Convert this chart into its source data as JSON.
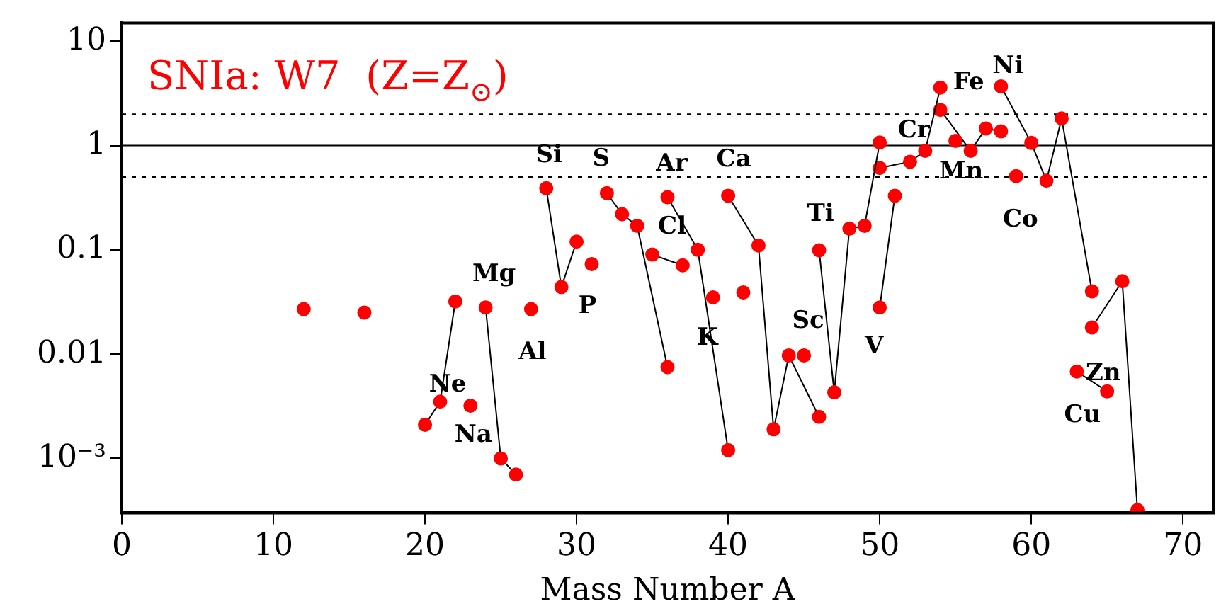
{
  "chart_data": {
    "type": "line",
    "title": "SNIa: W7  (Z=Z$_{⊙}$)",
    "xlabel": "Mass Number A",
    "log": "y",
    "grid": false,
    "marker": "circle",
    "xlim": [
      0,
      72
    ],
    "xticks": [
      0,
      10,
      20,
      30,
      40,
      50,
      60,
      70
    ],
    "ylim": [
      0.0003,
      15
    ],
    "yticks": [
      {
        "value": 0.001,
        "label": "10⁻³"
      },
      0.01,
      0.1,
      1,
      10
    ],
    "ref_lines": [
      {
        "axis": "y",
        "value": 1,
        "line_style": "solid"
      },
      {
        "axis": "y",
        "value": 2,
        "line_style": "dotted"
      },
      {
        "axis": "y",
        "value": 0.5,
        "line_style": "dotted"
      }
    ],
    "series": [
      {
        "color": "#ff0000",
        "x": [
          12
        ],
        "values": [
          0.027
        ]
      },
      {
        "color": "#ff0000",
        "x": [
          16
        ],
        "values": [
          0.025
        ]
      },
      {
        "name": "Ne",
        "color": "#ff0000",
        "x": [
          20,
          21,
          22
        ],
        "values": [
          0.0021,
          0.0035,
          0.032
        ]
      },
      {
        "name": "Na",
        "color": "#ff0000",
        "x": [
          23
        ],
        "values": [
          0.0032
        ]
      },
      {
        "name": "Mg",
        "color": "#ff0000",
        "x": [
          24,
          25,
          26
        ],
        "values": [
          0.028,
          0.001,
          0.0007
        ]
      },
      {
        "name": "Al",
        "color": "#ff0000",
        "x": [
          27
        ],
        "values": [
          0.027
        ]
      },
      {
        "name": "Si",
        "color": "#ff0000",
        "x": [
          28,
          29,
          30
        ],
        "values": [
          0.39,
          0.044,
          0.12
        ]
      },
      {
        "name": "P",
        "color": "#ff0000",
        "x": [
          31
        ],
        "values": [
          0.073
        ]
      },
      {
        "name": "S",
        "color": "#ff0000",
        "x": [
          32,
          33,
          34,
          36
        ],
        "values": [
          0.35,
          0.22,
          0.17,
          0.0075
        ]
      },
      {
        "name": "Cl",
        "color": "#ff0000",
        "x": [
          35,
          37
        ],
        "values": [
          0.09,
          0.071
        ]
      },
      {
        "name": "Ar",
        "color": "#ff0000",
        "x": [
          36,
          38,
          40
        ],
        "values": [
          0.32,
          0.1,
          0.0012
        ]
      },
      {
        "name": "K",
        "type": "scatter",
        "color": "#ff0000",
        "x": [
          39,
          41
        ],
        "values": [
          0.035,
          0.039
        ]
      },
      {
        "name": "Ca",
        "color": "#ff0000",
        "x": [
          40,
          42,
          43,
          44,
          46
        ],
        "values": [
          0.33,
          0.11,
          0.0019,
          0.0097,
          0.0025
        ]
      },
      {
        "name": "Sc",
        "color": "#ff0000",
        "x": [
          45
        ],
        "values": [
          0.0097
        ]
      },
      {
        "name": "Ti",
        "color": "#ff0000",
        "x": [
          46,
          47,
          48,
          49,
          50
        ],
        "values": [
          0.099,
          0.0043,
          0.16,
          0.17,
          1.07
        ]
      },
      {
        "name": "V",
        "color": "#ff0000",
        "x": [
          50,
          51
        ],
        "values": [
          0.028,
          0.33
        ]
      },
      {
        "name": "Cr",
        "color": "#ff0000",
        "x": [
          50,
          52,
          53,
          54
        ],
        "values": [
          0.61,
          0.7,
          0.89,
          3.6
        ]
      },
      {
        "name": "Mn",
        "color": "#ff0000",
        "x": [
          55
        ],
        "values": [
          1.11
        ]
      },
      {
        "name": "Fe",
        "color": "#ff0000",
        "x": [
          54,
          56,
          57,
          58
        ],
        "values": [
          2.2,
          0.89,
          1.46,
          1.37
        ]
      },
      {
        "name": "Co",
        "color": "#ff0000",
        "x": [
          59
        ],
        "values": [
          0.51
        ]
      },
      {
        "name": "Ni",
        "color": "#ff0000",
        "x": [
          58,
          60,
          61,
          62,
          64
        ],
        "values": [
          3.7,
          1.06,
          0.46,
          1.82,
          0.04
        ]
      },
      {
        "name": "Cu",
        "color": "#ff0000",
        "x": [
          63,
          65
        ],
        "values": [
          0.0068,
          0.0044
        ]
      },
      {
        "name": "Zn",
        "color": "#ff0000",
        "x": [
          64,
          66,
          67
        ],
        "values": [
          0.018,
          0.05,
          0.00032
        ]
      }
    ]
  }
}
